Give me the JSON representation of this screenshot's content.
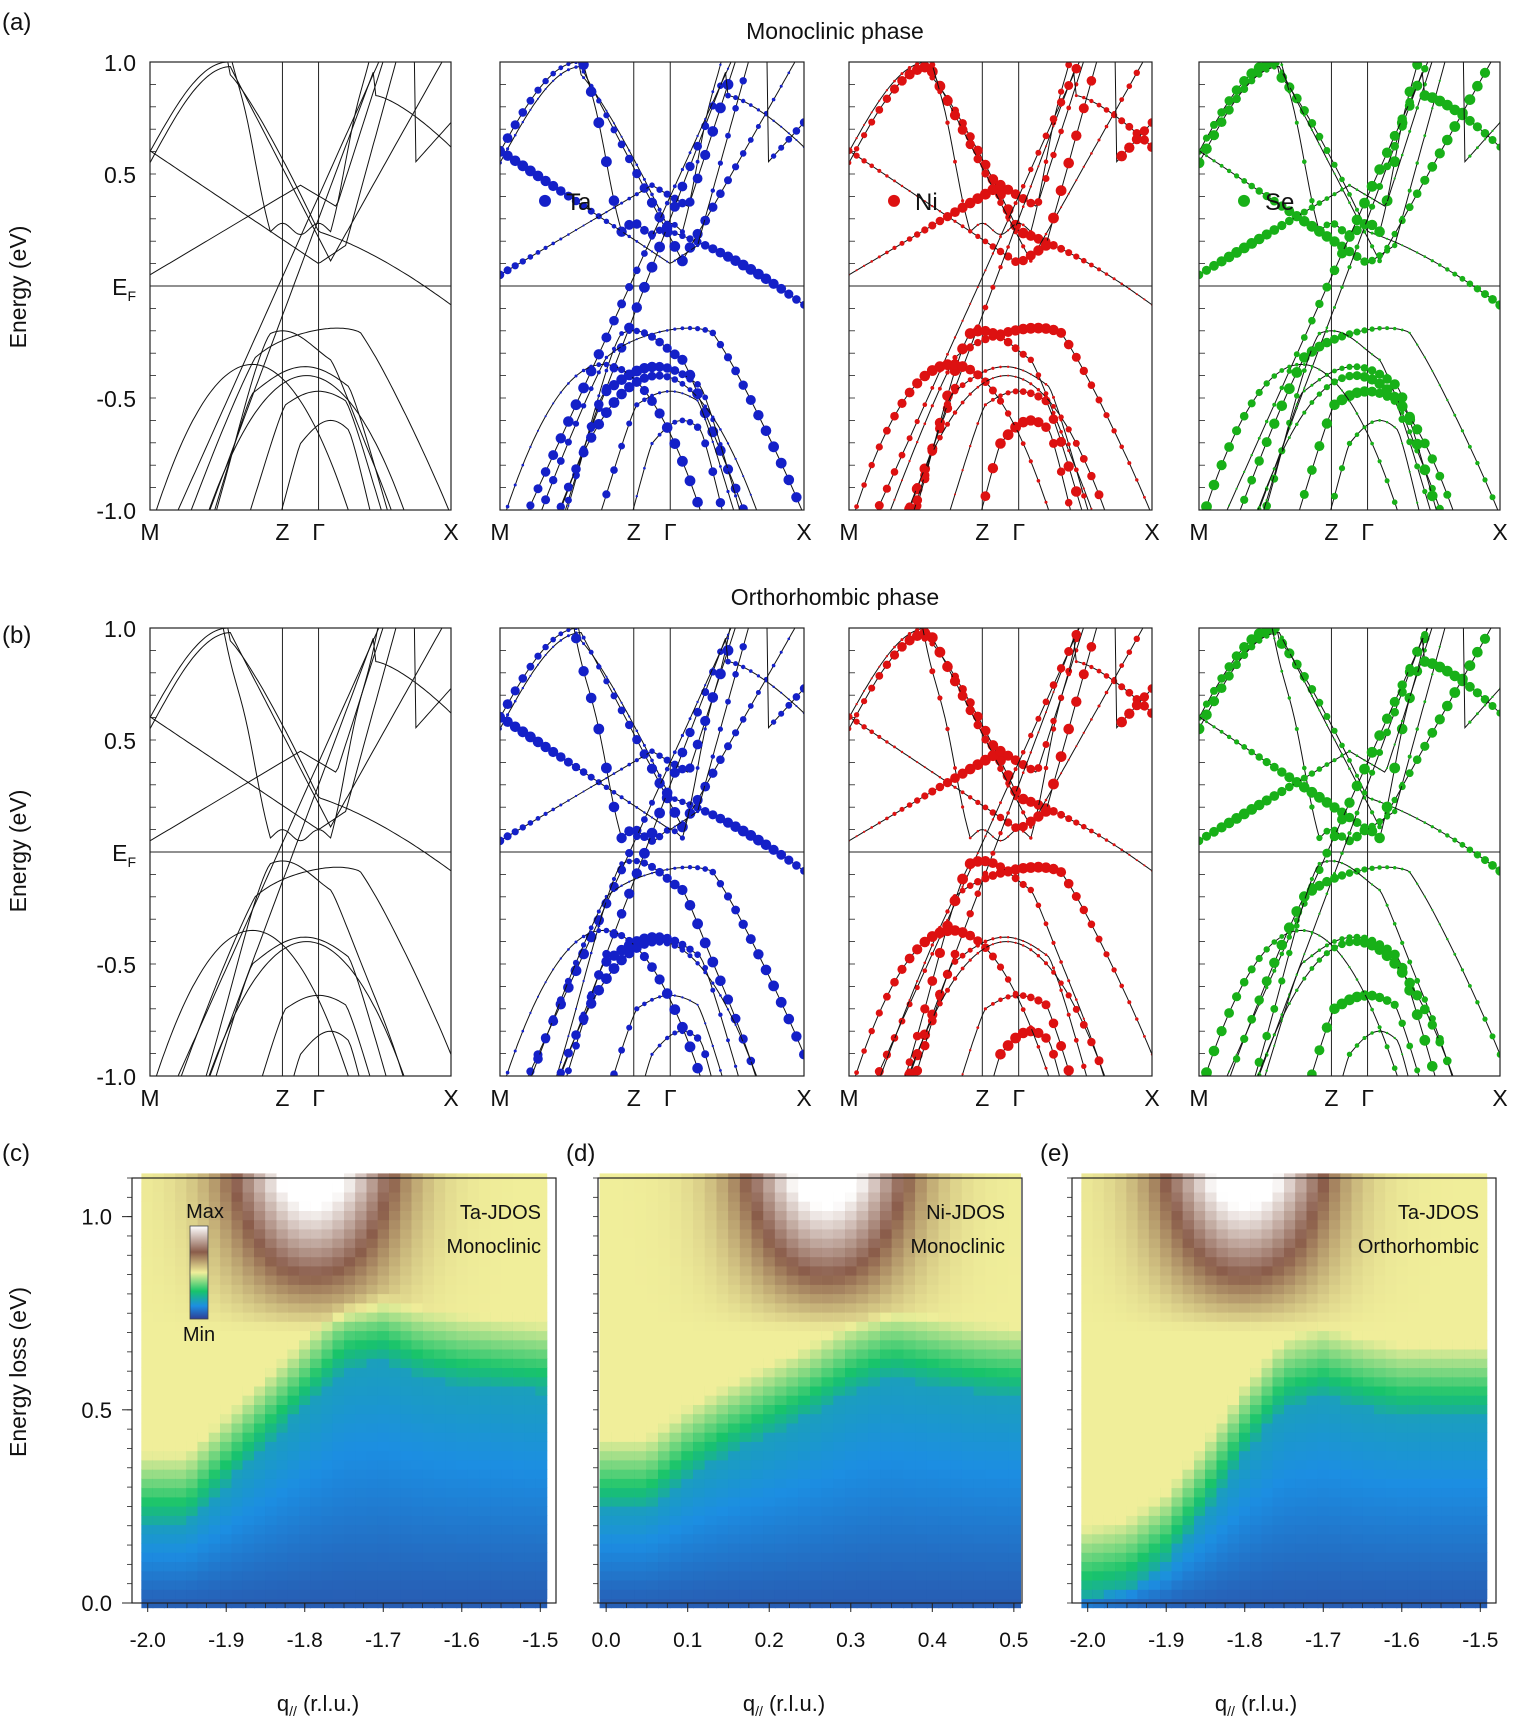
{
  "figure": {
    "panel_letters": [
      "(a)",
      "(b)",
      "(c)",
      "(d)",
      "(e)"
    ],
    "row_titles": [
      "Monoclinic phase",
      "Orthorhombic phase"
    ],
    "colors": {
      "Total": "#111111",
      "Ta": "#1420c8",
      "Ni": "#dd1111",
      "Se": "#18b018"
    }
  },
  "chart_data": [
    {
      "id": "a",
      "type": "line",
      "phase": "Monoclinic phase",
      "ylabel": "Energy (eV)",
      "ylim": [
        -1.0,
        1.0
      ],
      "yticks": [
        "1.0",
        "0.5",
        "E_F",
        "-0.5",
        "-1.0"
      ],
      "xticks": [
        "M",
        "Z",
        "Γ",
        "X"
      ],
      "subpanels": [
        {
          "projection": "Total",
          "legend": ""
        },
        {
          "projection": "Ta",
          "legend": "Ta"
        },
        {
          "projection": "Ni",
          "legend": "Ni"
        },
        {
          "projection": "Se",
          "legend": "Se"
        }
      ],
      "band_extrema": {
        "conduction_min_at_gamma": 0.1,
        "conduction_min_at_z": 0.23,
        "valence_max_at_gamma": -0.12,
        "valence_z_gamma_bands": [
          -0.28,
          -0.48,
          -0.55,
          -0.7
        ]
      }
    },
    {
      "id": "b",
      "type": "line",
      "phase": "Orthorhombic phase",
      "ylabel": "Energy (eV)",
      "ylim": [
        -1.0,
        1.0
      ],
      "yticks": [
        "1.0",
        "0.5",
        "E_F",
        "-0.5",
        "-1.0"
      ],
      "xticks": [
        "M",
        "Z",
        "Γ",
        "X"
      ],
      "subpanels": [
        {
          "projection": "Total",
          "legend": ""
        },
        {
          "projection": "Ta",
          "legend": ""
        },
        {
          "projection": "Ni",
          "legend": ""
        },
        {
          "projection": "Se",
          "legend": ""
        }
      ],
      "band_extrema": {
        "conduction_min_at_gamma": 0.1,
        "conduction_min_at_z": 0.05,
        "valence_max_at_gamma": 0.0,
        "valence_z_gamma_bands": [
          -0.12,
          -0.5,
          -0.72,
          -0.9
        ]
      }
    },
    {
      "id": "c",
      "type": "heatmap",
      "label": "Ta-JDOS",
      "phase": "Monoclinic",
      "xlabel": "q// (r.l.u.)",
      "ylabel": "Energy loss (eV)",
      "xlim": [
        -2.02,
        -1.48
      ],
      "ylim": [
        0.0,
        1.1
      ],
      "xticks": [
        "-2.0",
        "-1.9",
        "-1.8",
        "-1.7",
        "-1.6",
        "-1.5"
      ],
      "yticks": [
        "0.0",
        "0.5",
        "1.0"
      ],
      "colorbar": {
        "max_label": "Max",
        "min_label": "Min"
      },
      "ridge": {
        "x": [
          -2.0,
          -1.95,
          -1.9,
          -1.85,
          -1.8,
          -1.75,
          -1.7,
          -1.65,
          -1.6,
          -1.5
        ],
        "y": [
          0.22,
          0.22,
          0.32,
          0.42,
          0.52,
          0.62,
          0.64,
          0.6,
          0.58,
          0.56
        ]
      },
      "peak": {
        "x": -1.79,
        "y": 1.05
      }
    },
    {
      "id": "d",
      "type": "heatmap",
      "label": "Ni-JDOS",
      "phase": "Monoclinic",
      "xlabel": "q// (r.l.u.)",
      "ylabel": "",
      "xlim": [
        -0.01,
        0.51
      ],
      "ylim": [
        0.0,
        1.1
      ],
      "xticks": [
        "0.0",
        "0.1",
        "0.2",
        "0.3",
        "0.4",
        "0.5"
      ],
      "yticks": [],
      "ridge": {
        "x": [
          0.0,
          0.05,
          0.1,
          0.15,
          0.2,
          0.25,
          0.3,
          0.35,
          0.4,
          0.45,
          0.5
        ],
        "y": [
          0.26,
          0.26,
          0.34,
          0.4,
          0.45,
          0.5,
          0.56,
          0.6,
          0.58,
          0.56,
          0.55
        ]
      },
      "peak": {
        "x": 0.27,
        "y": 1.05
      }
    },
    {
      "id": "e",
      "type": "heatmap",
      "label": "Ta-JDOS",
      "phase": "Orthorhombic",
      "xlabel": "q// (r.l.u.)",
      "ylabel": "",
      "xlim": [
        -2.02,
        -1.48
      ],
      "ylim": [
        0.0,
        1.1
      ],
      "xticks": [
        "-2.0",
        "-1.9",
        "-1.8",
        "-1.7",
        "-1.6",
        "-1.5"
      ],
      "yticks": [],
      "ridge": {
        "x": [
          -2.0,
          -1.95,
          -1.9,
          -1.85,
          -1.8,
          -1.75,
          -1.7,
          -1.65,
          -1.6,
          -1.5
        ],
        "y": [
          0.03,
          0.05,
          0.12,
          0.25,
          0.4,
          0.52,
          0.55,
          0.52,
          0.5,
          0.5
        ]
      },
      "peak": {
        "x": -1.8,
        "y": 1.02
      }
    }
  ]
}
